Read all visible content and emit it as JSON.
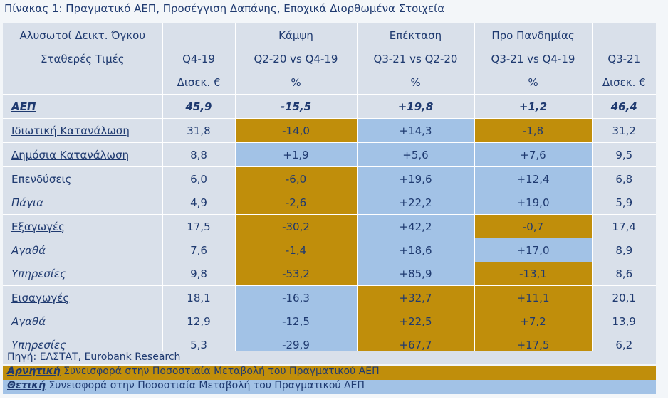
{
  "title": "Πίνακας 1: Πραγματικό ΑΕΠ, Προσέγγιση Δαπάνης, Εποχικά Διορθωμένα Στοιχεία",
  "colors": {
    "negative": "#c08e0b",
    "positive": "#a2c2e6",
    "panel": "#d9e0ea",
    "text": "#1f3a70"
  },
  "header": {
    "row1": [
      "Αλυσωτοί Δεικτ. Όγκου",
      "",
      "Κάμψη",
      "Επέκταση",
      "Προ Πανδημίας",
      ""
    ],
    "row2": [
      "Σταθερές Τιμές",
      "Q4-19",
      "Q2-20 vs Q4-19",
      "Q3-21 vs Q2-20",
      "Q3-21 vs Q4-19",
      "Q3-21"
    ],
    "row3": [
      "",
      "Δισεκ. €",
      "%",
      "%",
      "%",
      "Δισεκ. €"
    ]
  },
  "rows": [
    {
      "label": "ΑΕΠ",
      "cells": [
        "45,9",
        "-15,5",
        "+19,8",
        "+1,2",
        "46,4"
      ]
    },
    {
      "label": "Ιδιωτική Κατανάλωση",
      "cells": [
        "31,8",
        "-14,0",
        "+14,3",
        "-1,8",
        "31,2"
      ]
    },
    {
      "label": "Δημόσια Κατανάλωση",
      "cells": [
        "8,8",
        "+1,9",
        "+5,6",
        "+7,6",
        "9,5"
      ]
    },
    {
      "label": "Επενδύσεις",
      "cells": [
        "6,0",
        "-6,0",
        "+19,6",
        "+12,4",
        "6,8"
      ]
    },
    {
      "label": "Πάγια",
      "cells": [
        "4,9",
        "-2,6",
        "+22,2",
        "+19,0",
        "5,9"
      ]
    },
    {
      "label": "Εξαγωγές",
      "cells": [
        "17,5",
        "-30,2",
        "+42,2",
        "-0,7",
        "17,4"
      ]
    },
    {
      "label": "Αγαθά",
      "cells": [
        "7,6",
        "-1,4",
        "+18,6",
        "+17,0",
        "8,9"
      ]
    },
    {
      "label": "Υπηρεσίες",
      "cells": [
        "9,8",
        "-53,2",
        "+85,9",
        "-13,1",
        "8,6"
      ]
    },
    {
      "label": "Εισαγωγές",
      "cells": [
        "18,1",
        "-16,3",
        "+32,7",
        "+11,1",
        "20,1"
      ]
    },
    {
      "label": "Αγαθά",
      "cells": [
        "12,9",
        "-12,5",
        "+22,5",
        "+7,2",
        "13,9"
      ]
    },
    {
      "label": "Υπηρεσίες",
      "cells": [
        "5,3",
        "-29,9",
        "+67,7",
        "+17,5",
        "6,2"
      ]
    }
  ],
  "footer": {
    "source": "Πηγή: ΕΛΣΤΑΤ, Eurobank Research",
    "negative_word": "Αρνητική",
    "negative_text": " Συνεισφορά στην Ποσοστιαία Μεταβολή του Πραγματικού ΑΕΠ",
    "positive_word": "Θετική",
    "positive_text": " Συνεισφορά στην Ποσοστιαία Μεταβολή του Πραγματικού ΑΕΠ"
  }
}
